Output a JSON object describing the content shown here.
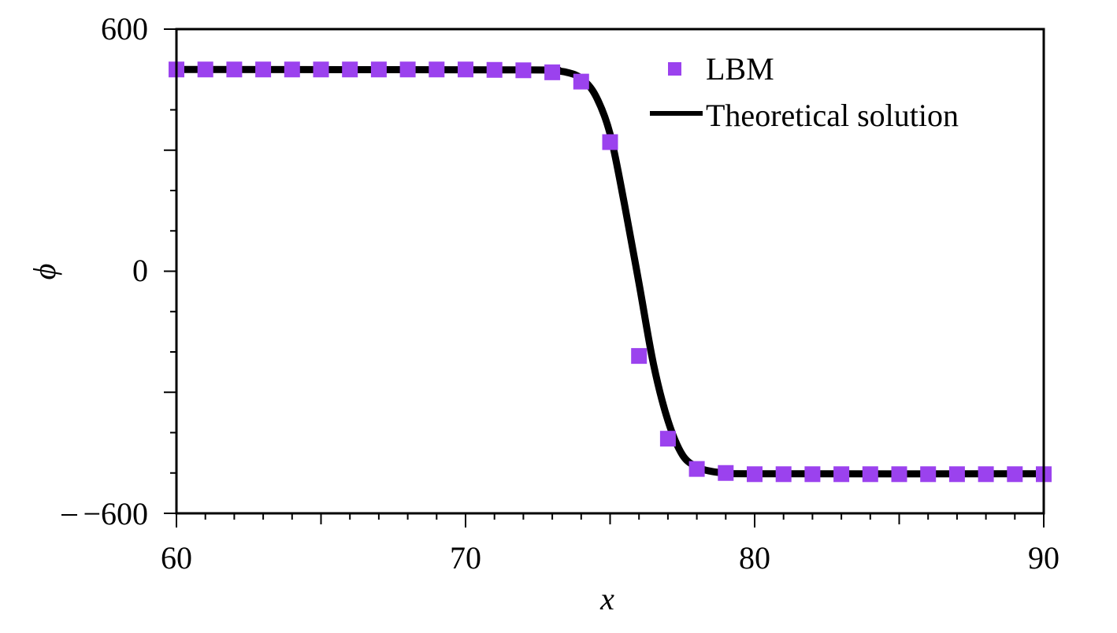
{
  "chart_data": {
    "type": "scatter",
    "xlabel": "x",
    "ylabel": "ϕ",
    "xlim": [
      60,
      90
    ],
    "ylim": [
      -600,
      600
    ],
    "x_ticks": [
      "60",
      "70",
      "80",
      "90"
    ],
    "y_ticks": [
      "−600",
      "0",
      "600"
    ],
    "grid": false,
    "legend_position": "top-right",
    "series": [
      {
        "name": "LBM",
        "marker": "square",
        "color": "#9B42EE",
        "x": [
          60,
          61,
          62,
          63,
          64,
          65,
          66,
          67,
          68,
          69,
          70,
          71,
          72,
          73,
          74,
          75,
          76,
          77,
          78,
          79,
          80,
          81,
          82,
          83,
          84,
          85,
          86,
          87,
          88,
          89,
          90
        ],
        "y": [
          500,
          500,
          500,
          500,
          500,
          500,
          500,
          500,
          500,
          500,
          500,
          499,
          498,
          493,
          470,
          320,
          -210,
          -415,
          -490,
          -500,
          -503,
          -503,
          -503,
          -503,
          -503,
          -503,
          -503,
          -503,
          -503,
          -503,
          -503
        ]
      },
      {
        "name": "Theoretical solution",
        "line": "solid",
        "color": "#000000",
        "x": [
          60,
          72,
          73,
          73.5,
          74,
          74.5,
          75,
          75.5,
          76,
          76.5,
          77,
          77.5,
          78,
          78.5,
          79,
          80,
          90
        ],
        "y": [
          500,
          499,
          497,
          493,
          478,
          435,
          340,
          165,
          -30,
          -230,
          -370,
          -455,
          -485,
          -496,
          -500,
          -502,
          -502
        ]
      }
    ]
  }
}
